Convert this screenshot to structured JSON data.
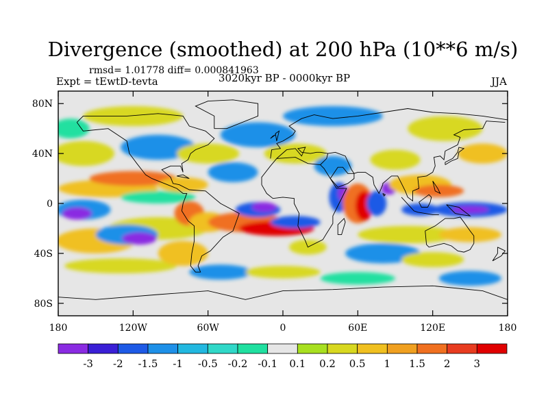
{
  "title": "Divergence (smoothed) at 200 hPa (10**6 m/s)",
  "stats_line": "rmsd= 1.01778 diff= 0.000841963",
  "experiment": "Expt = tEwtD-tevta",
  "period": "3020kyr BP - 0000kyr BP",
  "season": "JJA",
  "y_ticks": [
    {
      "lat": 80,
      "label": "80N"
    },
    {
      "lat": 40,
      "label": "40N"
    },
    {
      "lat": 0,
      "label": "0"
    },
    {
      "lat": -40,
      "label": "40S"
    },
    {
      "lat": -80,
      "label": "80S"
    }
  ],
  "x_ticks": [
    {
      "lon": -180,
      "label": "180"
    },
    {
      "lon": -120,
      "label": "120W"
    },
    {
      "lon": -60,
      "label": "60W"
    },
    {
      "lon": 0,
      "label": "0"
    },
    {
      "lon": 60,
      "label": "60E"
    },
    {
      "lon": 120,
      "label": "120E"
    },
    {
      "lon": 180,
      "label": "180"
    }
  ],
  "colorbar": {
    "colors": [
      "#8a2be2",
      "#3a1fd6",
      "#1e5ae6",
      "#1e90e8",
      "#22b8e0",
      "#30d8c8",
      "#20e0a0",
      "#e6e6e6",
      "#a8e020",
      "#d8d820",
      "#f0c020",
      "#f0a020",
      "#f07020",
      "#e83c20",
      "#e00000"
    ],
    "labels": [
      "-3",
      "-2",
      "-1.5",
      "-1",
      "-0.5",
      "-0.2",
      "-0.1",
      "0.1",
      "0.2",
      "0.5",
      "1",
      "1.5",
      "2",
      "3"
    ]
  },
  "map_palette": {
    "background": "#e6e6e6",
    "neutral_pos": "#a8e020",
    "pos_low": "#d8d820",
    "pos_mid": "#f0c020",
    "pos_high": "#f07020",
    "pos_max": "#e00000",
    "neg_low": "#20e0a0",
    "neg_mid": "#1e90e8",
    "neg_high": "#1e5ae6",
    "neg_max": "#8a2be2",
    "coast": "#000000"
  }
}
